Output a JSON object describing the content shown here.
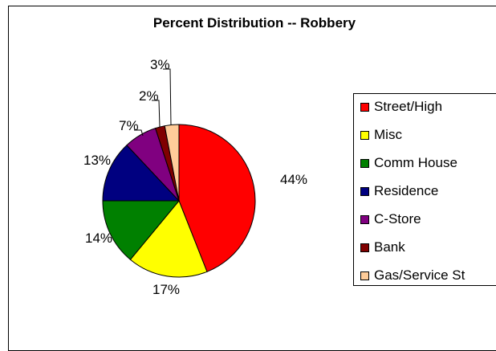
{
  "chart_data": {
    "type": "pie",
    "title": "Percent Distribution -- Robbery",
    "legend_position": "right",
    "slices": [
      {
        "label": "Street/High",
        "value": 44,
        "data_label": "44%",
        "color": "#ff0000"
      },
      {
        "label": "Misc",
        "value": 17,
        "data_label": "17%",
        "color": "#ffff00"
      },
      {
        "label": "Comm House",
        "value": 14,
        "data_label": "14%",
        "color": "#008000"
      },
      {
        "label": "Residence",
        "value": 13,
        "data_label": "13%",
        "color": "#000080"
      },
      {
        "label": "C-Store",
        "value": 7,
        "data_label": "7%",
        "color": "#800080"
      },
      {
        "label": "Bank",
        "value": 2,
        "data_label": "2%",
        "color": "#800000"
      },
      {
        "label": "Gas/Service St",
        "value": 3,
        "data_label": "3%",
        "color": "#ffcc99"
      }
    ]
  }
}
